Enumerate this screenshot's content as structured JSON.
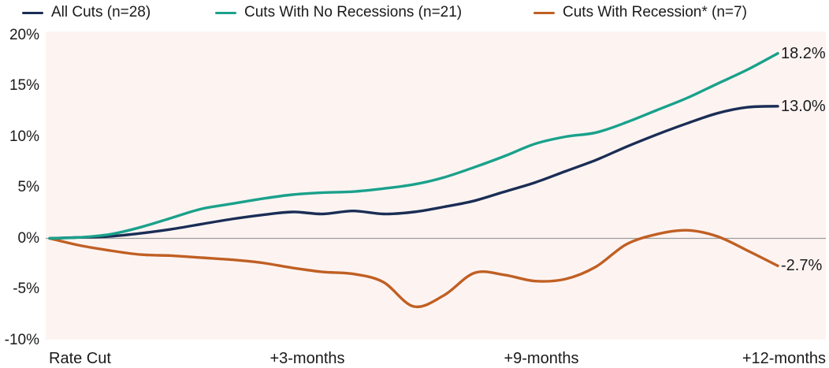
{
  "chart_data": {
    "type": "line",
    "title": "",
    "x_months": [
      0,
      0.5,
      1,
      1.5,
      2,
      2.5,
      3,
      3.5,
      4,
      4.5,
      5,
      5.5,
      6,
      6.5,
      7,
      7.5,
      8,
      8.5,
      9,
      9.5,
      10,
      10.5,
      11,
      11.5,
      12
    ],
    "x_tick_labels": [
      "Rate Cut",
      "+3-months",
      "+9-months",
      "+12-months"
    ],
    "y_tick_labels": [
      "20%",
      "15%",
      "10%",
      "5%",
      "0%",
      "-5%",
      "-10%"
    ],
    "y_ticks_pct": [
      20,
      15,
      10,
      5,
      0,
      -5,
      -10
    ],
    "ylim": [
      -10,
      20
    ],
    "zero_line": true,
    "legend_position": "top",
    "plot_background": "#fdf4f2",
    "zero_line_color": "#9b9b9b",
    "series": [
      {
        "name": "All Cuts (n=28)",
        "color": "#1a2d55",
        "end_label": "13.0%",
        "end_value": 13.0,
        "values": [
          0.0,
          0.1,
          0.2,
          0.5,
          0.9,
          1.4,
          1.9,
          2.3,
          2.6,
          2.4,
          2.7,
          2.4,
          2.6,
          3.1,
          3.7,
          4.6,
          5.5,
          6.6,
          7.7,
          9.0,
          10.2,
          11.3,
          12.3,
          12.9,
          13.0
        ]
      },
      {
        "name": "Cuts With No Recessions (n=21)",
        "color": "#1aa18b",
        "end_label": "18.2%",
        "end_value": 18.2,
        "values": [
          0.0,
          0.1,
          0.4,
          1.1,
          2.0,
          2.9,
          3.4,
          3.9,
          4.3,
          4.5,
          4.6,
          4.9,
          5.3,
          6.0,
          7.0,
          8.1,
          9.3,
          10.0,
          10.4,
          11.4,
          12.6,
          13.8,
          15.2,
          16.6,
          18.2
        ]
      },
      {
        "name": "Cuts With Recession* (n=7)",
        "color": "#c05f23",
        "end_label": "-2.7%",
        "end_value": -2.7,
        "values": [
          0.0,
          -0.7,
          -1.2,
          -1.6,
          -1.7,
          -1.9,
          -2.1,
          -2.4,
          -2.9,
          -3.3,
          -3.5,
          -4.3,
          -6.7,
          -5.6,
          -3.4,
          -3.6,
          -4.2,
          -4.0,
          -2.8,
          -0.6,
          0.4,
          0.8,
          0.2,
          -1.2,
          -2.7
        ]
      }
    ]
  }
}
